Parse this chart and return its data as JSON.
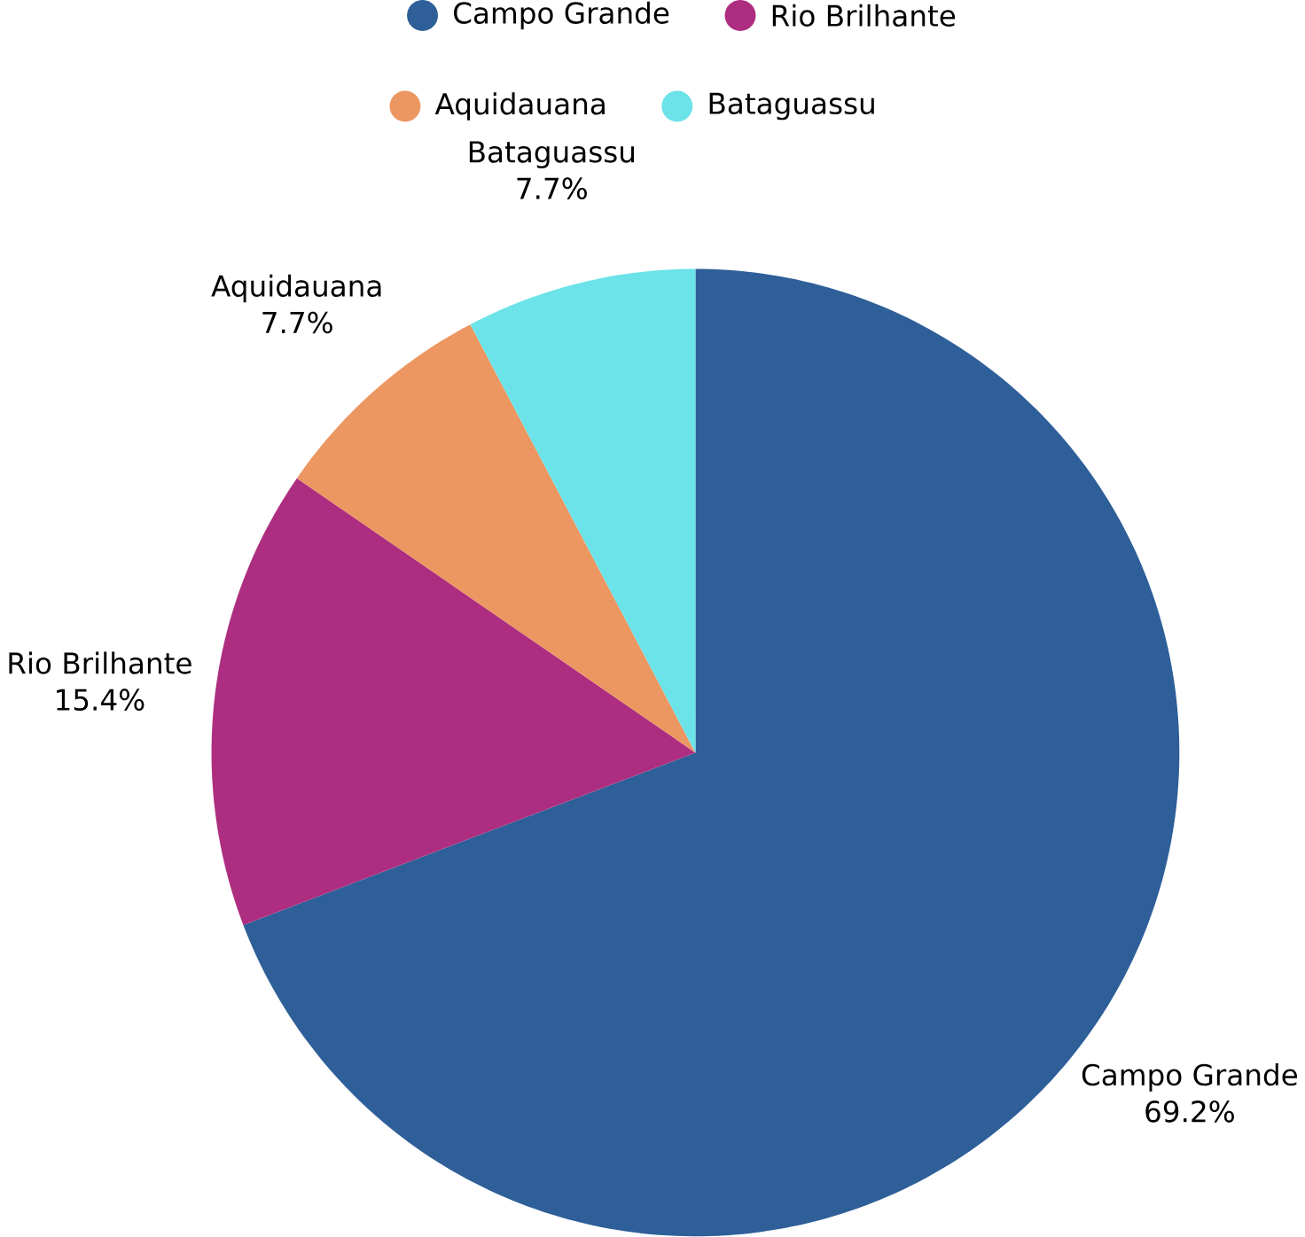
{
  "chart_data": {
    "type": "pie",
    "categories": [
      "Campo Grande",
      "Rio Brilhante",
      "Aquidauana",
      "Bataguassu"
    ],
    "values": [
      69.2,
      15.4,
      7.7,
      7.7
    ],
    "value_labels": [
      "69.2%",
      "15.4%",
      "7.7%",
      "7.7%"
    ],
    "colors": [
      "#2e5f98",
      "#ad2e80",
      "#ec9662",
      "#6be3e8"
    ],
    "legend": "top"
  }
}
